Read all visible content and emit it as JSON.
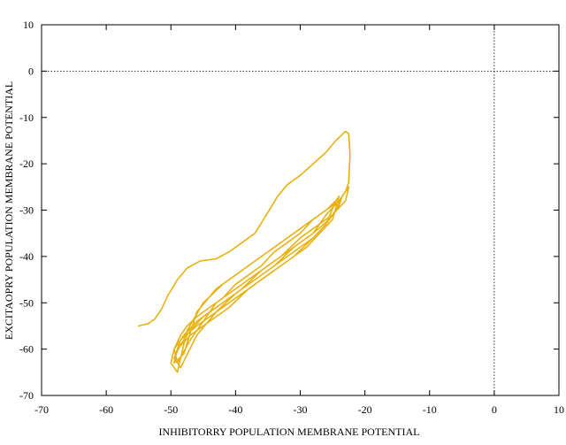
{
  "chart_data": {
    "type": "line",
    "title": "",
    "xlabel": "INHIBITORRY POPULATION MEMBRANE POTENTIAL",
    "ylabel": "EXCITAOPRY POPULATION MEMBRANE POTENTIAL",
    "xlim": [
      -70,
      10
    ],
    "ylim": [
      -70,
      10
    ],
    "xticks": [
      -70,
      -60,
      -50,
      -40,
      -30,
      -20,
      -10,
      0,
      10
    ],
    "yticks": [
      -70,
      -60,
      -50,
      -40,
      -30,
      -20,
      -10,
      0,
      10
    ],
    "zero_lines": true,
    "grid": false,
    "series_color": "#e8b214",
    "series": [
      {
        "name": "",
        "x": [
          -55,
          -53.5,
          -52.5,
          -51.5,
          -50.5,
          -49,
          -47.5,
          -45.5,
          -43,
          -41,
          -39,
          -37,
          -35,
          -33.5,
          -32,
          -30,
          -28,
          -26,
          -24.5,
          -23,
          -22.5,
          -22.3,
          -22.5,
          -23,
          -24,
          -26,
          -28,
          -30,
          -32,
          -34,
          -36,
          -38,
          -40,
          -42,
          -44,
          -46,
          -47.5,
          -48.5,
          -49.5,
          -49,
          -47,
          -45,
          -43,
          -40,
          -37,
          -34,
          -31,
          -28,
          -26,
          -24,
          -23,
          -22.5,
          -23,
          -25,
          -27,
          -30,
          -33,
          -36,
          -39,
          -42,
          -45,
          -47,
          -48.5,
          -49.5,
          -48.5,
          -46,
          -43,
          -40,
          -37,
          -34,
          -31,
          -28,
          -25.5,
          -24,
          -23.5,
          -24.5,
          -26,
          -28,
          -31,
          -34,
          -37,
          -40,
          -43,
          -46,
          -48,
          -49.5,
          -50,
          -49,
          -47.5,
          -45,
          -42,
          -39,
          -36,
          -33,
          -30,
          -27,
          -25,
          -24,
          -25,
          -27,
          -29,
          -32,
          -35,
          -38,
          -41,
          -44,
          -47,
          -49,
          -49.5,
          -48,
          -46,
          -43,
          -40,
          -37,
          -34,
          -31,
          -28,
          -26,
          -24.5,
          -26,
          -28,
          -31,
          -34,
          -37,
          -40,
          -43,
          -46,
          -48.5,
          -49.5
        ],
        "y": [
          -55,
          -54.5,
          -53.5,
          -51.5,
          -48.5,
          -45,
          -42.5,
          -41,
          -40.5,
          -39,
          -37,
          -35,
          -30.5,
          -27,
          -24.5,
          -22.5,
          -20,
          -17.5,
          -15,
          -13,
          -13.5,
          -18,
          -24,
          -26,
          -28,
          -30,
          -32,
          -35,
          -37,
          -39,
          -42,
          -44,
          -46,
          -49,
          -51,
          -53,
          -55,
          -57,
          -60,
          -63,
          -58,
          -54,
          -50,
          -47,
          -44,
          -41,
          -38,
          -35,
          -31,
          -28,
          -26,
          -25,
          -28,
          -31,
          -33,
          -36,
          -40,
          -43,
          -47,
          -50,
          -53,
          -56,
          -59,
          -62,
          -64,
          -57,
          -52,
          -48,
          -45,
          -42,
          -38,
          -35,
          -32,
          -29,
          -27,
          -30,
          -33,
          -36,
          -39,
          -42,
          -45,
          -48,
          -51,
          -54,
          -57,
          -60,
          -63,
          -65,
          -56,
          -50,
          -46,
          -43,
          -40,
          -37,
          -34,
          -31,
          -29,
          -27,
          -32,
          -35,
          -38,
          -41,
          -44,
          -47,
          -51,
          -54,
          -57,
          -60,
          -63,
          -61,
          -52,
          -47,
          -44,
          -41,
          -38,
          -35,
          -32,
          -30,
          -28,
          -33,
          -36,
          -40,
          -43,
          -46,
          -49,
          -52,
          -55,
          -58,
          -62
        ]
      }
    ]
  }
}
